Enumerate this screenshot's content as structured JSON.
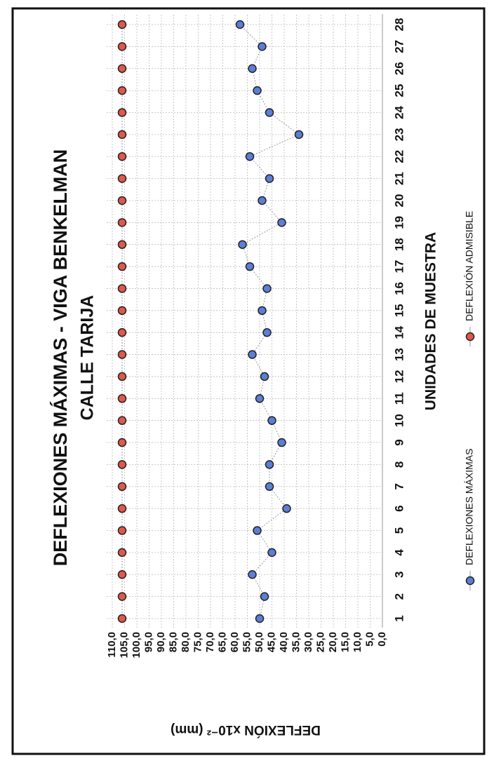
{
  "chart_data": {
    "type": "line",
    "title": "DEFLEXIONES MÁXIMAS - VIGA BENKELMAN",
    "subtitle": "CALLE TARIJA",
    "x_label": "UNIDADES DE MUESTRA",
    "y_label": "DEFLEXIÓN x10⁻² (mm)",
    "categories": [
      "1",
      "2",
      "3",
      "4",
      "5",
      "6",
      "7",
      "8",
      "9",
      "10",
      "11",
      "12",
      "13",
      "14",
      "15",
      "16",
      "17",
      "18",
      "19",
      "20",
      "21",
      "22",
      "23",
      "24",
      "25",
      "26",
      "27",
      "28"
    ],
    "series": [
      {
        "name": "DEFLEXIONES MÁXIMAS",
        "color": "#5b7fd6",
        "values": [
          50,
          48,
          53,
          45,
          51,
          39,
          46,
          46,
          41,
          45,
          50,
          48,
          53,
          47,
          49,
          47,
          54,
          57,
          41,
          49,
          46,
          54,
          34,
          46,
          51,
          53,
          49,
          58
        ]
      },
      {
        "name": "DEFLEXIÓN ADMISIBLE",
        "color": "#e0584a",
        "values": [
          106,
          106,
          106,
          106,
          106,
          106,
          106,
          106,
          106,
          106,
          106,
          106,
          106,
          106,
          106,
          106,
          106,
          106,
          106,
          106,
          106,
          106,
          106,
          106,
          106,
          106,
          106,
          106
        ]
      }
    ],
    "ylim": [
      0,
      110
    ],
    "yticks": [
      {
        "value": 0,
        "label": "0,0"
      },
      {
        "value": 5,
        "label": "5,0"
      },
      {
        "value": 10,
        "label": "10,0"
      },
      {
        "value": 15,
        "label": "15,0"
      },
      {
        "value": 20,
        "label": "20,0"
      },
      {
        "value": 25,
        "label": "25,0"
      },
      {
        "value": 30,
        "label": "30,0"
      },
      {
        "value": 35,
        "label": "35,0"
      },
      {
        "value": 40,
        "label": "40,0"
      },
      {
        "value": 45,
        "label": "45,0"
      },
      {
        "value": 50,
        "label": "50,0"
      },
      {
        "value": 55,
        "label": "55,0"
      },
      {
        "value": 60,
        "label": "60,0"
      },
      {
        "value": 65,
        "label": "65,0"
      },
      {
        "value": 70,
        "label": "70,0"
      },
      {
        "value": 75,
        "label": "75,0"
      },
      {
        "value": 80,
        "label": "80,0"
      },
      {
        "value": 85,
        "label": "85,0"
      },
      {
        "value": 90,
        "label": "90,0"
      },
      {
        "value": 95,
        "label": "95,0"
      },
      {
        "value": 100,
        "label": "100,0"
      },
      {
        "value": 105,
        "label": "105,0"
      },
      {
        "value": 110,
        "label": "110,0"
      }
    ],
    "grid": true
  }
}
